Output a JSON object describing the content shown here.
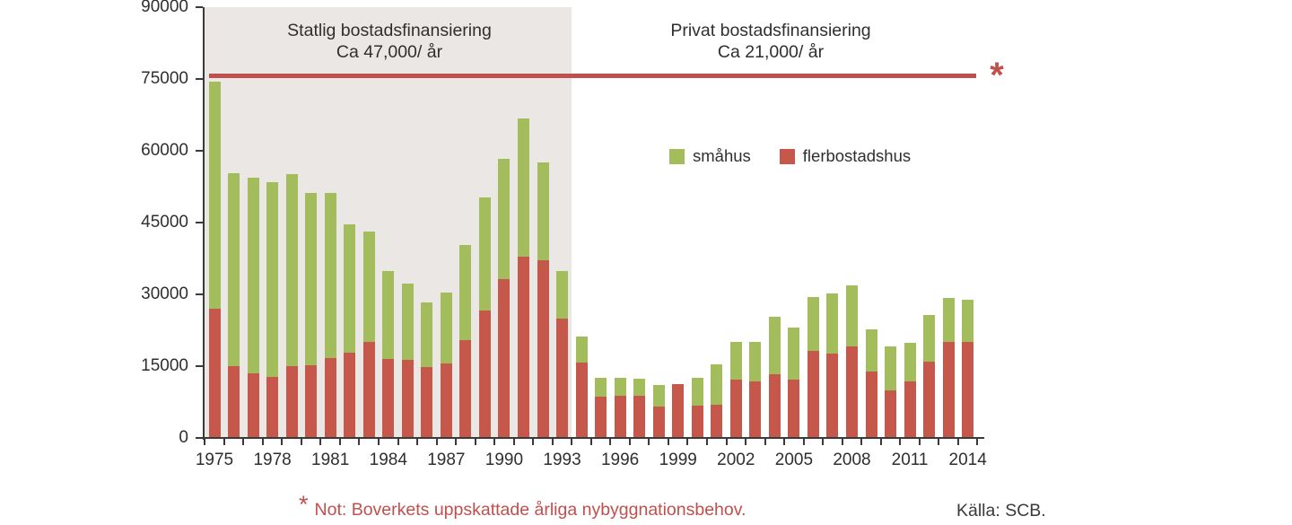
{
  "annotations": {
    "region_state": {
      "line1": "Statlig bostadsfinansiering",
      "line2": "Ca 47,000/ år",
      "covers_years": "1975–1993"
    },
    "region_private": {
      "line1": "Privat bostadsfinansiering",
      "line2": "Ca 21,000/ år",
      "covers_years": "1994–2014"
    },
    "reference_marker": "*",
    "footnote_marker": "*",
    "footnote_text": "Not: Boverkets uppskattade årliga nybyggnationsbehov.",
    "source": "Källa: SCB."
  },
  "legend": {
    "items": [
      {
        "label": "småhus",
        "color": "#A4BD5C"
      },
      {
        "label": "flerbostadshus",
        "color": "#C6574B"
      }
    ]
  },
  "colors": {
    "smahus": "#A4BD5C",
    "flerbostadshus": "#C6574B",
    "reference_line": "#C0504D",
    "shaded_background": "#EBE7E4",
    "axis": "#3a3a3a",
    "note": "#C0504D"
  },
  "chart_data": {
    "type": "bar",
    "stacked": true,
    "title": "",
    "xlabel": "",
    "ylabel": "",
    "grid": false,
    "legend_position": "inside-upper-middle",
    "x": [
      1975,
      1976,
      1977,
      1978,
      1979,
      1980,
      1981,
      1982,
      1983,
      1984,
      1985,
      1986,
      1987,
      1988,
      1989,
      1990,
      1991,
      1992,
      1993,
      1994,
      1995,
      1996,
      1997,
      1998,
      1999,
      2000,
      2001,
      2002,
      2003,
      2004,
      2005,
      2006,
      2007,
      2008,
      2009,
      2010,
      2011,
      2012,
      2013,
      2014
    ],
    "series": [
      {
        "name": "flerbostadshus",
        "color": "#C6574B",
        "values": [
          27000,
          15000,
          13500,
          12800,
          15000,
          15200,
          16700,
          17900,
          20000,
          16500,
          16400,
          14800,
          15600,
          20400,
          26600,
          33200,
          37800,
          37200,
          25000,
          15700,
          8700,
          8900,
          8800,
          6600,
          11200,
          6800,
          7000,
          12200,
          11800,
          13400,
          12200,
          18200,
          17600,
          19200,
          13900,
          10000,
          11800,
          16000,
          20100,
          20100
        ]
      },
      {
        "name": "småhus",
        "color": "#A4BD5C",
        "values": [
          47400,
          40400,
          40800,
          40600,
          40100,
          36000,
          34500,
          26700,
          23100,
          18300,
          15900,
          13600,
          14800,
          19900,
          23700,
          25100,
          29000,
          20300,
          9800,
          5500,
          3800,
          3700,
          3600,
          4400,
          0,
          5700,
          8300,
          7800,
          8200,
          11900,
          10800,
          11300,
          12600,
          12700,
          8700,
          9200,
          8000,
          9700,
          9100,
          8700
        ]
      }
    ],
    "ylim": [
      0,
      90000
    ],
    "yticks": [
      0,
      15000,
      30000,
      45000,
      60000,
      75000,
      90000
    ],
    "xtick_labels": [
      "1975",
      "1978",
      "1981",
      "1984",
      "1987",
      "1990",
      "1993",
      "1996",
      "1999",
      "2002",
      "2005",
      "2008",
      "2011",
      "2014"
    ],
    "reference_line": {
      "value": 75800,
      "color": "#C0504D",
      "marker": "*"
    },
    "shaded_region": {
      "from_year": 1975,
      "to_year": 1993,
      "color": "#EBE7E4"
    }
  }
}
